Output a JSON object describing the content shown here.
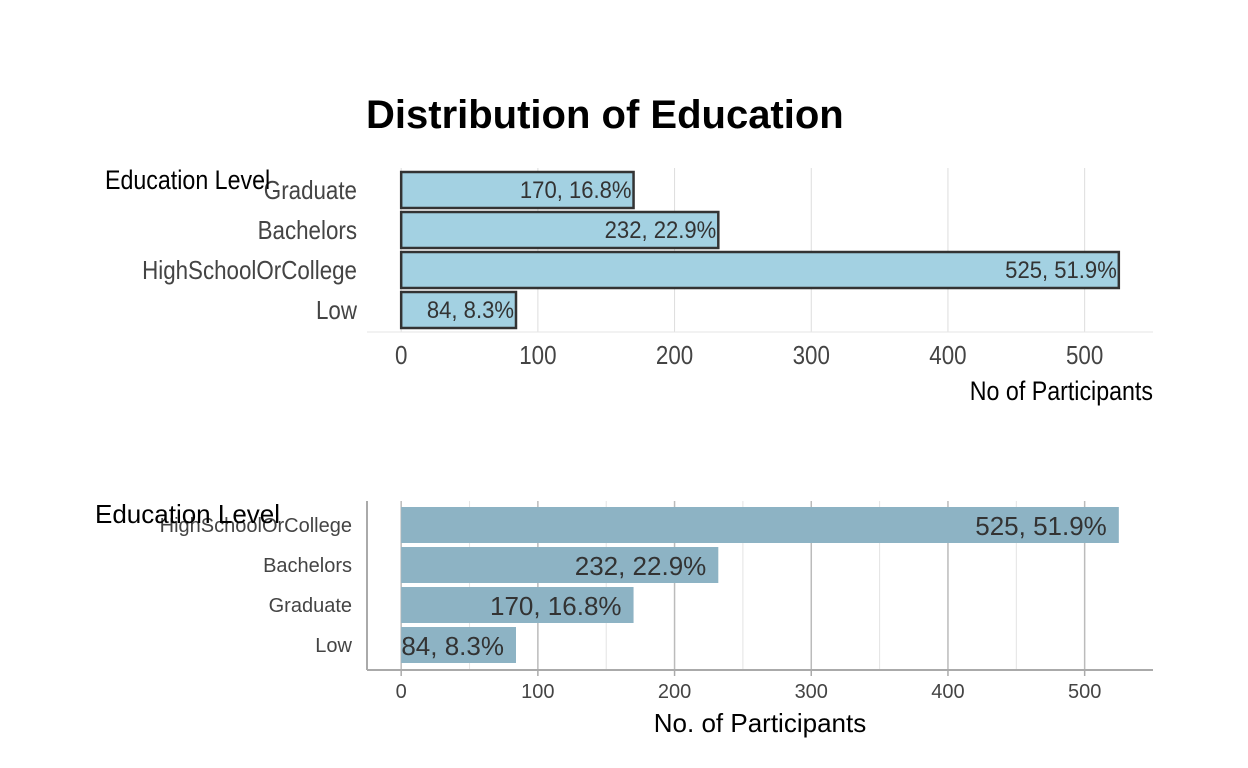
{
  "chart_data": [
    {
      "type": "bar",
      "orientation": "horizontal",
      "title": "Distribution of Education",
      "legend_title": "Education Level",
      "xlabel": "No of Participants",
      "ylabel": "",
      "xlim": [
        -25,
        550
      ],
      "xticks": [
        0,
        100,
        200,
        300,
        400,
        500
      ],
      "grid": true,
      "bar_color": "#a3d1e2",
      "bar_outline": "#333333",
      "categories": [
        "Graduate",
        "Bachelors",
        "HighSchoolOrCollege",
        "Low"
      ],
      "values": [
        170,
        232,
        525,
        84
      ],
      "labels": [
        "170, 16.8%",
        "232, 22.9%",
        "525, 51.9%",
        "84, 8.3%"
      ]
    },
    {
      "type": "bar",
      "orientation": "horizontal",
      "title": "",
      "legend_title": "Education Level",
      "xlabel": "No. of Participants",
      "ylabel": "",
      "xlim": [
        -25,
        550
      ],
      "xticks": [
        0,
        100,
        200,
        300,
        400,
        500
      ],
      "grid": true,
      "bar_color": "#8db3c4",
      "categories": [
        "HighSchoolOrCollege",
        "Bachelors",
        "Graduate",
        "Low"
      ],
      "values": [
        525,
        232,
        170,
        84
      ],
      "labels": [
        "525, 51.9%",
        "232, 22.9%",
        "170, 16.8%",
        "84, 8.3%"
      ]
    }
  ]
}
